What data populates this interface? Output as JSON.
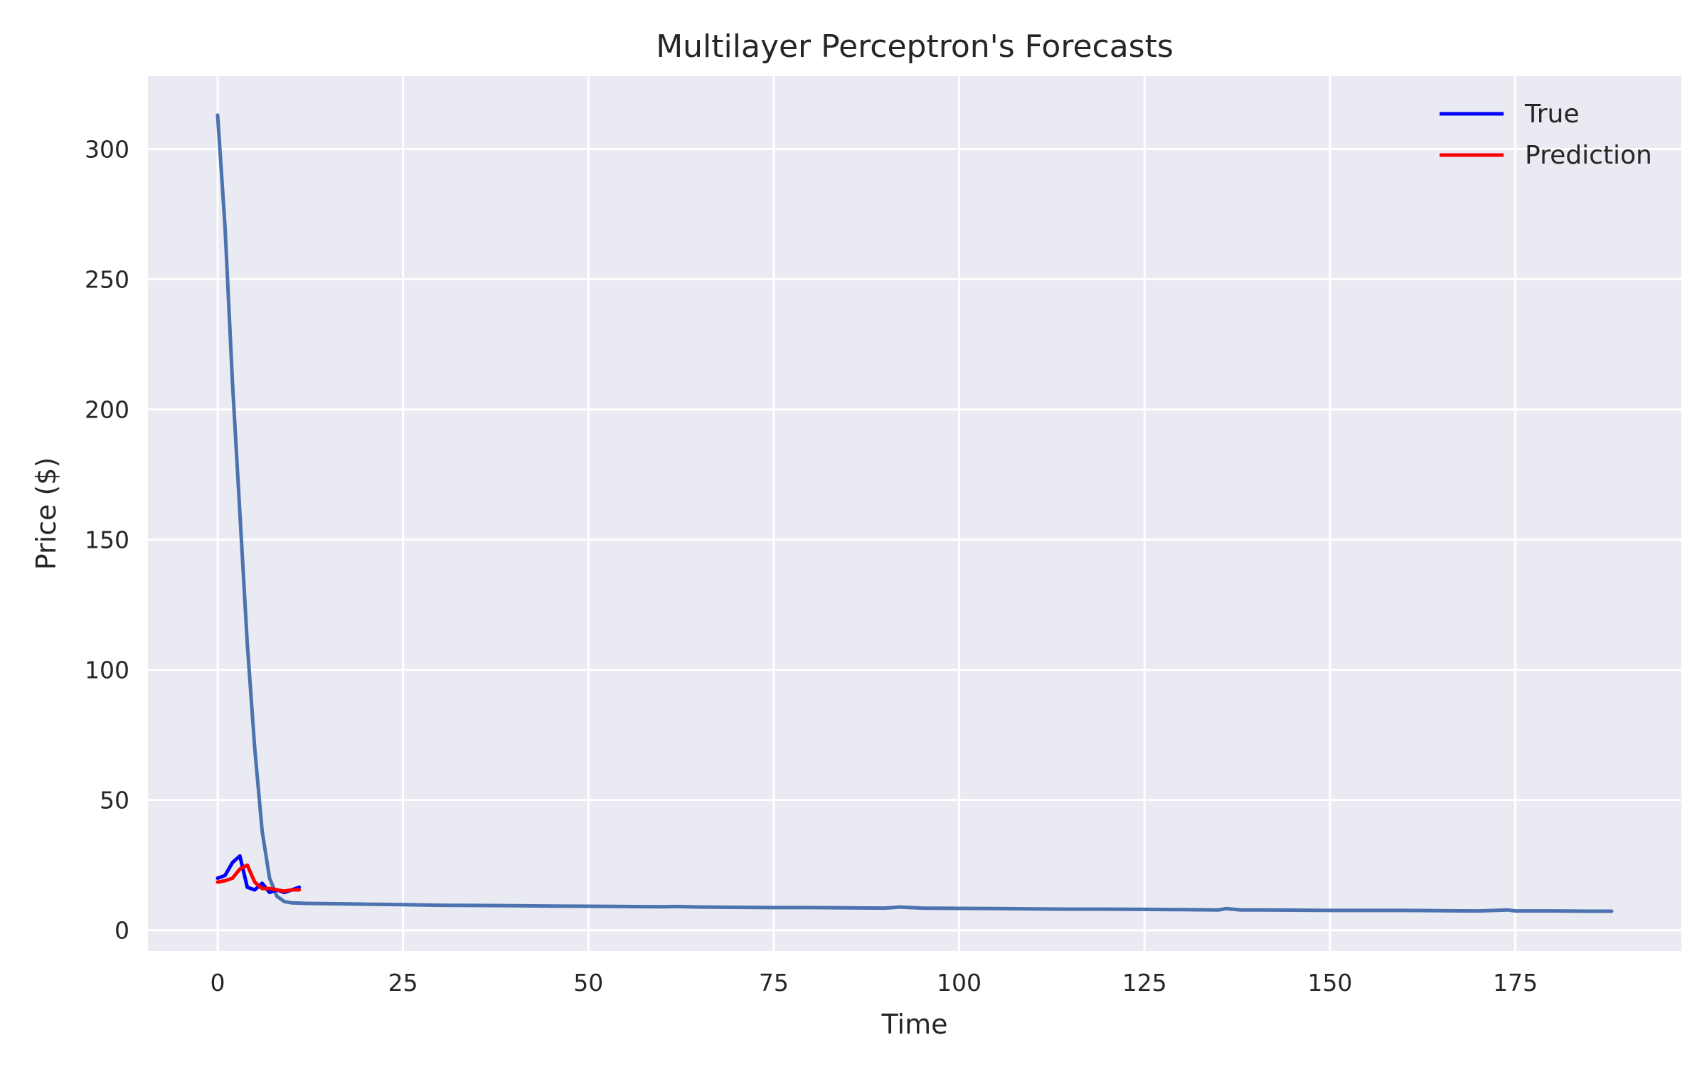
{
  "chart_data": {
    "type": "line",
    "title": "Multilayer Perceptron's Forecasts",
    "xlabel": "Time",
    "ylabel": "Price ($)",
    "xlim": [
      -9.4,
      197.4
    ],
    "ylim": [
      -8,
      328
    ],
    "xticks": [
      0,
      25,
      50,
      75,
      100,
      125,
      150,
      175
    ],
    "yticks": [
      0,
      50,
      100,
      150,
      200,
      250,
      300
    ],
    "grid": true,
    "legend_position": "top-right",
    "background": "#eaeaf2",
    "series": [
      {
        "name": "True",
        "color": "#0000ff",
        "x": [
          0,
          1,
          2,
          3,
          4,
          5,
          6,
          7,
          8,
          9,
          10,
          11
        ],
        "y": [
          20,
          21,
          26,
          28.5,
          16.5,
          15.5,
          18,
          14.5,
          15.5,
          14.5,
          15.5,
          16.5
        ]
      },
      {
        "name": "Prediction",
        "color": "#ff0000",
        "x": [
          0,
          1,
          2,
          3,
          4,
          5,
          6,
          7,
          8,
          9,
          10,
          11
        ],
        "y": [
          18.5,
          19,
          20,
          23.5,
          25,
          18.5,
          16,
          16,
          15.5,
          15,
          15.5,
          15.5
        ]
      },
      {
        "name": "",
        "color": "#4c72b0",
        "x": [
          0,
          1,
          2,
          3,
          4,
          5,
          6,
          7,
          8,
          9,
          10,
          12,
          15,
          20,
          25,
          30,
          35,
          40,
          45,
          50,
          55,
          60,
          62,
          65,
          70,
          75,
          80,
          85,
          90,
          92,
          95,
          100,
          105,
          110,
          115,
          120,
          125,
          130,
          135,
          136,
          138,
          140,
          145,
          150,
          155,
          160,
          165,
          170,
          174,
          175,
          180,
          185,
          188
        ],
        "y": [
          313,
          270,
          210,
          160,
          110,
          70,
          38,
          20,
          13,
          11,
          10.5,
          10.3,
          10.2,
          10,
          9.8,
          9.6,
          9.5,
          9.4,
          9.3,
          9.2,
          9.1,
          9,
          9.1,
          8.9,
          8.8,
          8.7,
          8.7,
          8.6,
          8.5,
          8.9,
          8.5,
          8.4,
          8.3,
          8.2,
          8.1,
          8.1,
          8,
          7.9,
          7.8,
          8.3,
          7.8,
          7.8,
          7.7,
          7.6,
          7.6,
          7.6,
          7.5,
          7.4,
          7.8,
          7.4,
          7.4,
          7.3,
          7.3
        ]
      }
    ]
  }
}
